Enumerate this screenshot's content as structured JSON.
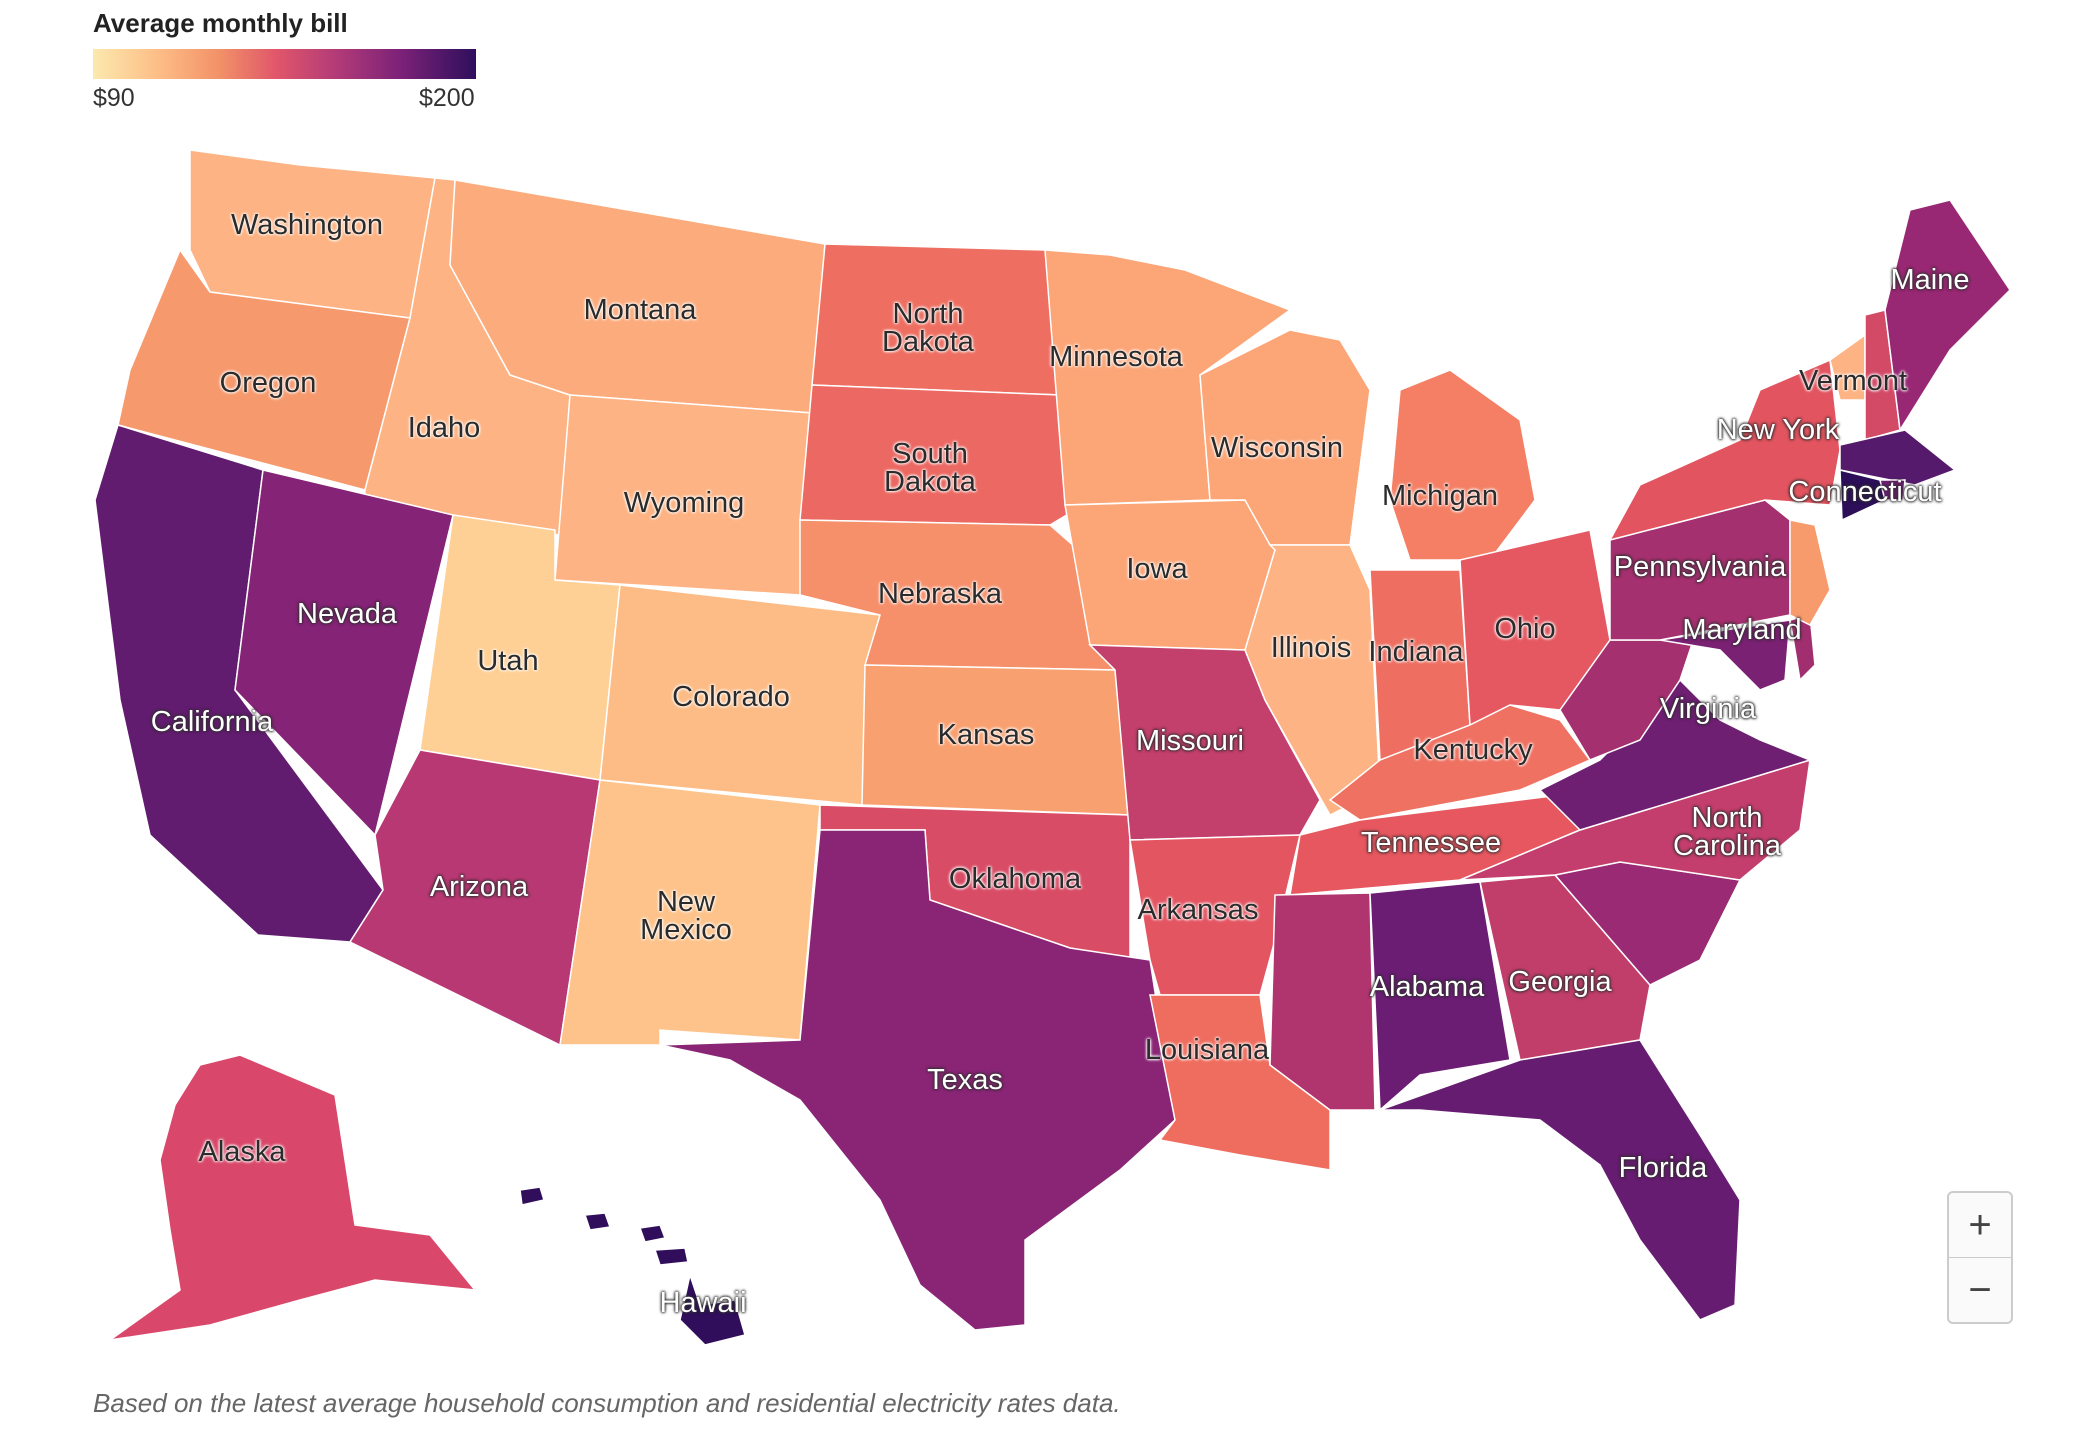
{
  "legend": {
    "title": "Average monthly bill",
    "min_label": "$90",
    "max_label": "$200",
    "colors": [
      "#fce9ae",
      "#fdbb84",
      "#f29168",
      "#e0566a",
      "#b13a78",
      "#7d2278",
      "#2e0f5c"
    ]
  },
  "note": "Based on the latest average household consumption and residential electricity rates data.",
  "zoom": {
    "in_label": "+",
    "out_label": "−"
  },
  "states": [
    {
      "name": "Washington",
      "label": "Washington",
      "color": "#fdb383",
      "dark": true
    },
    {
      "name": "Oregon",
      "label": "Oregon",
      "color": "#f69a6e",
      "dark": true
    },
    {
      "name": "California",
      "label": "California",
      "color": "#621c6f",
      "dark": false
    },
    {
      "name": "Idaho",
      "label": "Idaho",
      "color": "#fdb383",
      "dark": true
    },
    {
      "name": "Nevada",
      "label": "Nevada",
      "color": "#852376",
      "dark": false
    },
    {
      "name": "Montana",
      "label": "Montana",
      "color": "#fcac7c",
      "dark": true
    },
    {
      "name": "Wyoming",
      "label": "Wyoming",
      "color": "#fdb383",
      "dark": true
    },
    {
      "name": "Utah",
      "label": "Utah",
      "color": "#fed095",
      "dark": true
    },
    {
      "name": "Colorado",
      "label": "Colorado",
      "color": "#fdbc86",
      "dark": true
    },
    {
      "name": "Arizona",
      "label": "Arizona",
      "color": "#b83873",
      "dark": false
    },
    {
      "name": "New Mexico",
      "label": "New\nMexico",
      "color": "#fdc38a",
      "dark": true
    },
    {
      "name": "North Dakota",
      "label": "North\nDakota",
      "color": "#ee6f62",
      "dark": true
    },
    {
      "name": "South Dakota",
      "label": "South\nDakota",
      "color": "#ec6862",
      "dark": true
    },
    {
      "name": "Nebraska",
      "label": "Nebraska",
      "color": "#f6906b",
      "dark": true
    },
    {
      "name": "Kansas",
      "label": "Kansas",
      "color": "#f9a070",
      "dark": true
    },
    {
      "name": "Oklahoma",
      "label": "Oklahoma",
      "color": "#d94c66",
      "dark": true
    },
    {
      "name": "Texas",
      "label": "Texas",
      "color": "#8a2576",
      "dark": false
    },
    {
      "name": "Minnesota",
      "label": "Minnesota",
      "color": "#fca577",
      "dark": true
    },
    {
      "name": "Iowa",
      "label": "Iowa",
      "color": "#fca577",
      "dark": true
    },
    {
      "name": "Missouri",
      "label": "Missouri",
      "color": "#c33f6c",
      "dark": false
    },
    {
      "name": "Arkansas",
      "label": "Arkansas",
      "color": "#e45562",
      "dark": true
    },
    {
      "name": "Louisiana",
      "label": "Louisiana",
      "color": "#ef6d5f",
      "dark": true
    },
    {
      "name": "Wisconsin",
      "label": "Wisconsin",
      "color": "#fca577",
      "dark": true
    },
    {
      "name": "Illinois",
      "label": "Illinois",
      "color": "#fdb383",
      "dark": true
    },
    {
      "name": "Michigan",
      "label": "Michigan",
      "color": "#f47f65",
      "dark": true
    },
    {
      "name": "Indiana",
      "label": "Indiana",
      "color": "#ee6f62",
      "dark": true
    },
    {
      "name": "Ohio",
      "label": "Ohio",
      "color": "#e55862",
      "dark": true
    },
    {
      "name": "Kentucky",
      "label": "Kentucky",
      "color": "#ef7162",
      "dark": true
    },
    {
      "name": "Tennessee",
      "label": "Tennessee",
      "color": "#e6575f",
      "dark": false
    },
    {
      "name": "Mississippi",
      "label": "",
      "color": "#b0356f",
      "dark": false
    },
    {
      "name": "Alabama",
      "label": "Alabama",
      "color": "#6b1d73",
      "dark": false
    },
    {
      "name": "Georgia",
      "label": "Georgia",
      "color": "#c13e6a",
      "dark": false
    },
    {
      "name": "Florida",
      "label": "Florida",
      "color": "#661c70",
      "dark": false
    },
    {
      "name": "South Carolina",
      "label": "",
      "color": "#9a2a74",
      "dark": false
    },
    {
      "name": "North Carolina",
      "label": "North\nCarolina",
      "color": "#c33e6c",
      "dark": false
    },
    {
      "name": "Virginia",
      "label": "Virginia",
      "color": "#6e1f72",
      "dark": false
    },
    {
      "name": "West Virginia",
      "label": "",
      "color": "#a5306f",
      "dark": false
    },
    {
      "name": "Maryland",
      "label": "Maryland",
      "color": "#7a2173",
      "dark": false
    },
    {
      "name": "Delaware",
      "label": "",
      "color": "#a12f70",
      "dark": false
    },
    {
      "name": "Pennsylvania",
      "label": "Pennsylvania",
      "color": "#a4306f",
      "dark": false
    },
    {
      "name": "New Jersey",
      "label": "",
      "color": "#f79a6c",
      "dark": true
    },
    {
      "name": "New York",
      "label": "New York",
      "color": "#e2545f",
      "dark": false
    },
    {
      "name": "Vermont",
      "label": "Vermont",
      "color": "#fdb383",
      "dark": true
    },
    {
      "name": "New Hampshire",
      "label": "",
      "color": "#d34a67",
      "dark": false
    },
    {
      "name": "Maine",
      "label": "Maine",
      "color": "#982873",
      "dark": false
    },
    {
      "name": "Massachusetts",
      "label": "",
      "color": "#561a6c",
      "dark": false
    },
    {
      "name": "Connecticut",
      "label": "Connecticut",
      "color": "#2c0f58",
      "dark": false
    },
    {
      "name": "Rhode Island",
      "label": "",
      "color": "#6d1f72",
      "dark": false
    },
    {
      "name": "Alaska",
      "label": "Alaska",
      "color": "#d9486a",
      "dark": true
    },
    {
      "name": "Hawaii",
      "label": "Hawaii",
      "color": "#300e5c",
      "dark": false
    }
  ]
}
